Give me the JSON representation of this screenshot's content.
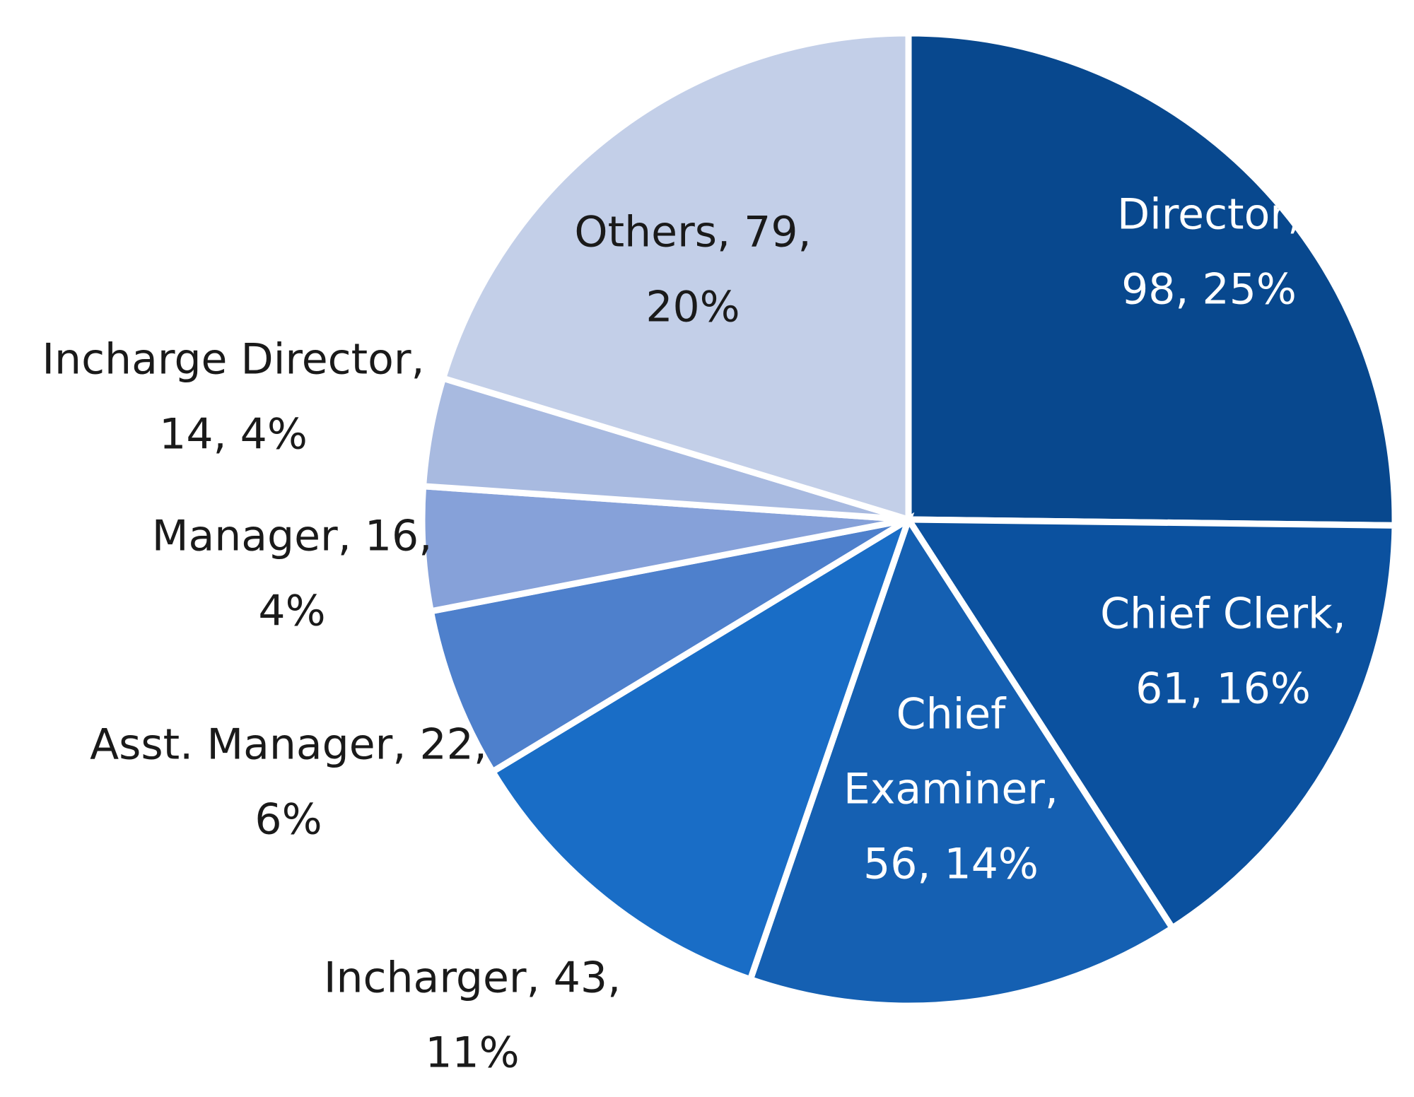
{
  "chart_data": {
    "type": "pie",
    "start_angle_deg": 0,
    "direction": "clockwise",
    "slices": [
      {
        "name": "Director",
        "value": 98,
        "percent": "25%",
        "color": "#08488E",
        "label_color": "#ffffff",
        "label": [
          "Director,",
          "98, 25%"
        ]
      },
      {
        "name": "Chief Clerk",
        "value": 61,
        "percent": "16%",
        "color": "#0B519F",
        "label_color": "#ffffff",
        "label": [
          "Chief Clerk,",
          "61, 16%"
        ]
      },
      {
        "name": "Chief Examiner",
        "value": 56,
        "percent": "14%",
        "color": "#1560B2",
        "label_color": "#ffffff",
        "label": [
          "Chief",
          "Examiner,",
          "56, 14%"
        ]
      },
      {
        "name": "Incharger",
        "value": 43,
        "percent": "11%",
        "color": "#196DC6",
        "label_color": "#1a1a1a",
        "label": [
          "Incharger, 43,",
          "11%"
        ]
      },
      {
        "name": "Asst. Manager",
        "value": 22,
        "percent": "6%",
        "color": "#4E80CC",
        "label_color": "#1a1a1a",
        "label": [
          "Asst. Manager, 22,",
          "6%"
        ]
      },
      {
        "name": "Manager",
        "value": 16,
        "percent": "4%",
        "color": "#86A1D9",
        "label_color": "#1a1a1a",
        "label": [
          "Manager, 16,",
          "4%"
        ]
      },
      {
        "name": "Incharge Director",
        "value": 14,
        "percent": "4%",
        "color": "#A8BAE0",
        "label_color": "#1a1a1a",
        "label": [
          "Incharge Director,",
          "14, 4%"
        ]
      },
      {
        "name": "Others",
        "value": 79,
        "percent": "20%",
        "color": "#C3CFE8",
        "label_color": "#1a1a1a",
        "label": [
          "Others, 79,",
          "20%"
        ]
      }
    ]
  }
}
